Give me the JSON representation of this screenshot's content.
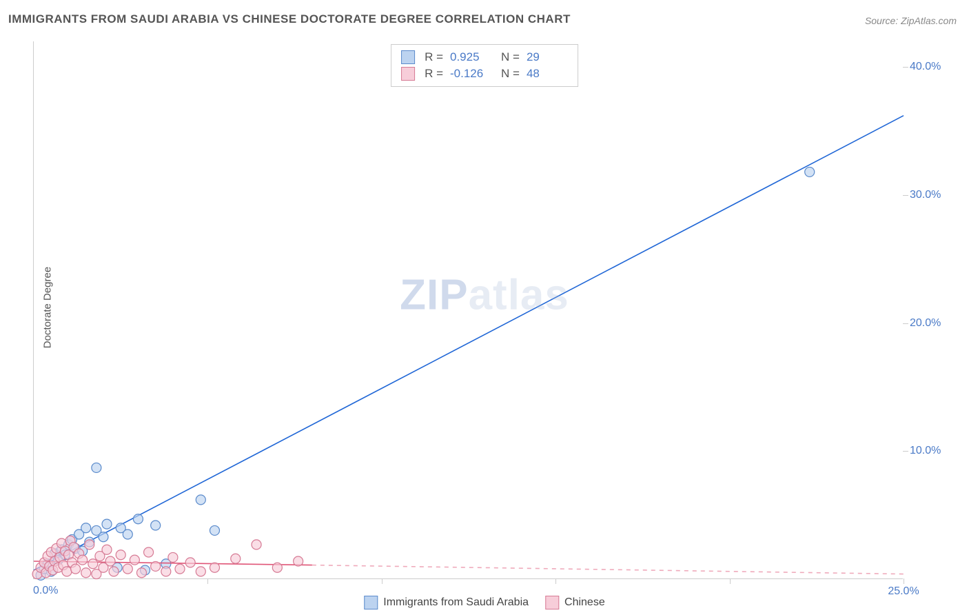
{
  "title": "IMMIGRANTS FROM SAUDI ARABIA VS CHINESE DOCTORATE DEGREE CORRELATION CHART",
  "source": "Source: ZipAtlas.com",
  "ylabel": "Doctorate Degree",
  "watermark_zip": "ZIP",
  "watermark_atlas": "atlas",
  "chart": {
    "type": "scatter",
    "background_color": "#ffffff",
    "grid_color": "#eeeeee",
    "axis_color": "#cccccc",
    "tick_label_color": "#4a7ac7",
    "xlim": [
      0,
      25
    ],
    "ylim": [
      0,
      42
    ],
    "xtick_last_label": "25.0%",
    "xtick_positions": [
      5,
      10,
      15,
      20,
      25
    ],
    "ytick_labels": [
      "10.0%",
      "20.0%",
      "30.0%",
      "40.0%"
    ],
    "ytick_positions": [
      10,
      20,
      30,
      40
    ],
    "x_origin_label": "0.0%",
    "marker_radius": 7,
    "marker_stroke_width": 1.2,
    "line_width": 1.6,
    "series": [
      {
        "name": "Immigrants from Saudi Arabia",
        "short": "saudi",
        "marker_fill": "#bcd3f0",
        "marker_stroke": "#5a8acb",
        "line_color": "#1f66d6",
        "legend_swatch_fill": "#bcd3f0",
        "legend_swatch_stroke": "#5a8acb",
        "R": "0.925",
        "N": "29",
        "trend": {
          "x1": 0,
          "y1": 0.7,
          "x2": 25,
          "y2": 36.2,
          "dashed": false
        },
        "points": [
          [
            0.2,
            0.3
          ],
          [
            0.3,
            0.8
          ],
          [
            0.4,
            1.2
          ],
          [
            0.5,
            0.6
          ],
          [
            0.6,
            2.0
          ],
          [
            0.7,
            1.5
          ],
          [
            0.8,
            2.3
          ],
          [
            0.9,
            1.9
          ],
          [
            1.0,
            2.7
          ],
          [
            1.1,
            3.1
          ],
          [
            1.2,
            2.4
          ],
          [
            1.3,
            3.5
          ],
          [
            1.4,
            2.2
          ],
          [
            1.5,
            4.0
          ],
          [
            1.6,
            2.9
          ],
          [
            1.8,
            3.8
          ],
          [
            2.0,
            3.3
          ],
          [
            2.1,
            4.3
          ],
          [
            2.4,
            0.9
          ],
          [
            2.5,
            4.0
          ],
          [
            2.7,
            3.5
          ],
          [
            3.0,
            4.7
          ],
          [
            3.2,
            0.7
          ],
          [
            3.5,
            4.2
          ],
          [
            1.8,
            8.7
          ],
          [
            4.8,
            6.2
          ],
          [
            5.2,
            3.8
          ],
          [
            3.8,
            1.2
          ],
          [
            22.3,
            31.8
          ]
        ]
      },
      {
        "name": "Chinese",
        "short": "chinese",
        "marker_fill": "#f7cdd9",
        "marker_stroke": "#d67a94",
        "line_color": "#e05577",
        "legend_swatch_fill": "#f7cdd9",
        "legend_swatch_stroke": "#d67a94",
        "R": "-0.126",
        "N": "48",
        "trend": {
          "x1": 0,
          "y1": 1.4,
          "x2": 8,
          "y2": 1.1,
          "dashed": false
        },
        "trend_ext": {
          "x1": 8,
          "y1": 1.1,
          "x2": 25,
          "y2": 0.4,
          "dashed": true
        },
        "points": [
          [
            0.1,
            0.4
          ],
          [
            0.2,
            0.9
          ],
          [
            0.3,
            1.3
          ],
          [
            0.35,
            0.5
          ],
          [
            0.4,
            1.8
          ],
          [
            0.45,
            1.0
          ],
          [
            0.5,
            2.1
          ],
          [
            0.55,
            0.7
          ],
          [
            0.6,
            1.4
          ],
          [
            0.65,
            2.4
          ],
          [
            0.7,
            0.9
          ],
          [
            0.75,
            1.7
          ],
          [
            0.8,
            2.8
          ],
          [
            0.85,
            1.1
          ],
          [
            0.9,
            2.2
          ],
          [
            0.95,
            0.6
          ],
          [
            1.0,
            1.9
          ],
          [
            1.05,
            3.0
          ],
          [
            1.1,
            1.3
          ],
          [
            1.15,
            2.5
          ],
          [
            1.2,
            0.8
          ],
          [
            1.3,
            2.0
          ],
          [
            1.4,
            1.5
          ],
          [
            1.5,
            0.5
          ],
          [
            1.6,
            2.7
          ],
          [
            1.7,
            1.2
          ],
          [
            1.8,
            0.4
          ],
          [
            1.9,
            1.8
          ],
          [
            2.0,
            0.9
          ],
          [
            2.1,
            2.3
          ],
          [
            2.2,
            1.4
          ],
          [
            2.3,
            0.6
          ],
          [
            2.5,
            1.9
          ],
          [
            2.7,
            0.8
          ],
          [
            2.9,
            1.5
          ],
          [
            3.1,
            0.5
          ],
          [
            3.3,
            2.1
          ],
          [
            3.5,
            1.0
          ],
          [
            3.8,
            0.6
          ],
          [
            4.0,
            1.7
          ],
          [
            4.2,
            0.8
          ],
          [
            4.5,
            1.3
          ],
          [
            4.8,
            0.6
          ],
          [
            5.2,
            0.9
          ],
          [
            5.8,
            1.6
          ],
          [
            6.4,
            2.7
          ],
          [
            7.0,
            0.9
          ],
          [
            7.6,
            1.4
          ]
        ]
      }
    ]
  },
  "legend_top": {
    "r_label": "R  =",
    "n_label": "N  ="
  },
  "legend_bottom": {
    "items": [
      "Immigrants from Saudi Arabia",
      "Chinese"
    ]
  }
}
